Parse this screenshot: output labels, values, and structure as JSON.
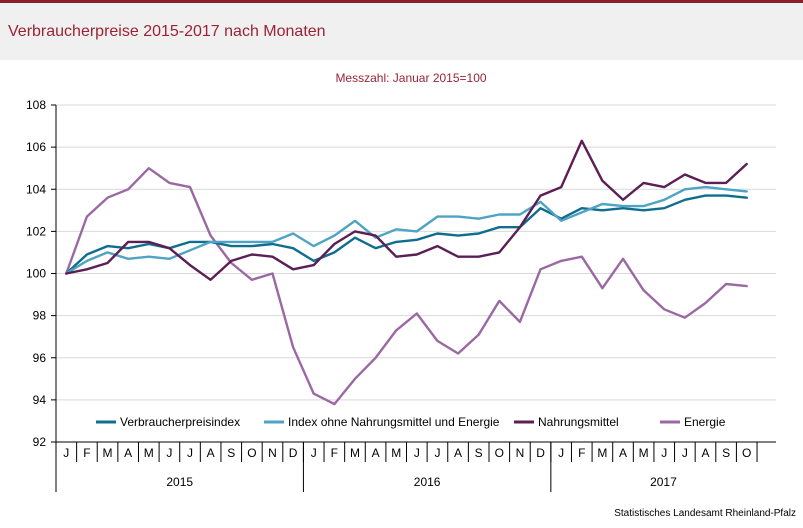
{
  "header": {
    "title": "Verbraucherpreise 2015-2017 nach Monaten"
  },
  "footer": {
    "source": "Statistisches Landesamt Rheinland-Pfalz"
  },
  "colors": {
    "brand": "#8a1f2d",
    "title": "#9b2335",
    "series": [
      "#0f6d8e",
      "#4fa3c4",
      "#5b1e55",
      "#9b68a3"
    ]
  },
  "chart_data": {
    "type": "line",
    "subtitle": "Messzahl: Januar 2015=100",
    "xlabel": "",
    "ylabel": "",
    "ylim": [
      92,
      108
    ],
    "yticks": [
      92,
      94,
      96,
      98,
      100,
      102,
      104,
      106,
      108
    ],
    "grid": true,
    "legend": "bottom-inside",
    "months": [
      "J",
      "F",
      "M",
      "A",
      "M",
      "J",
      "J",
      "A",
      "S",
      "O",
      "N",
      "D",
      "J",
      "F",
      "M",
      "A",
      "M",
      "J",
      "J",
      "A",
      "S",
      "O",
      "N",
      "D",
      "J",
      "F",
      "M",
      "A",
      "M",
      "J",
      "J",
      "A",
      "S",
      "O"
    ],
    "years": [
      {
        "label": "2015",
        "months": 12
      },
      {
        "label": "2016",
        "months": 12
      },
      {
        "label": "2017",
        "months": 10
      }
    ],
    "series": [
      {
        "name": "Verbraucherpreisindex",
        "values": [
          100.0,
          100.9,
          101.3,
          101.2,
          101.4,
          101.2,
          101.5,
          101.5,
          101.3,
          101.3,
          101.4,
          101.2,
          100.6,
          101.0,
          101.7,
          101.2,
          101.5,
          101.6,
          101.9,
          101.8,
          101.9,
          102.2,
          102.2,
          103.1,
          102.6,
          103.1,
          103.0,
          103.1,
          103.0,
          103.1,
          103.5,
          103.7,
          103.7,
          103.6
        ]
      },
      {
        "name": "Index ohne Nahrungsmittel und Energie",
        "values": [
          100.0,
          100.6,
          101.0,
          100.7,
          100.8,
          100.7,
          101.1,
          101.5,
          101.5,
          101.5,
          101.5,
          101.9,
          101.3,
          101.8,
          102.5,
          101.7,
          102.1,
          102.0,
          102.7,
          102.7,
          102.6,
          102.8,
          102.8,
          103.4,
          102.5,
          102.9,
          103.3,
          103.2,
          103.2,
          103.5,
          104.0,
          104.1,
          104.0,
          103.9
        ]
      },
      {
        "name": "Nahrungsmittel",
        "values": [
          100.0,
          100.2,
          100.5,
          101.5,
          101.5,
          101.2,
          100.4,
          99.7,
          100.6,
          100.9,
          100.8,
          100.2,
          100.4,
          101.4,
          102.0,
          101.8,
          100.8,
          100.9,
          101.3,
          100.8,
          100.8,
          101.0,
          102.2,
          103.7,
          104.1,
          106.3,
          104.4,
          103.5,
          104.3,
          104.1,
          104.7,
          104.3,
          104.3,
          105.2
        ]
      },
      {
        "name": "Energie",
        "values": [
          100.0,
          102.7,
          103.6,
          104.0,
          105.0,
          104.3,
          104.1,
          101.8,
          100.5,
          99.7,
          100.0,
          96.5,
          94.3,
          93.8,
          95.0,
          96.0,
          97.3,
          98.1,
          96.8,
          96.2,
          97.1,
          98.7,
          97.7,
          100.2,
          100.6,
          100.8,
          99.3,
          100.7,
          99.2,
          98.3,
          97.9,
          98.6,
          99.5,
          99.4
        ]
      }
    ]
  }
}
